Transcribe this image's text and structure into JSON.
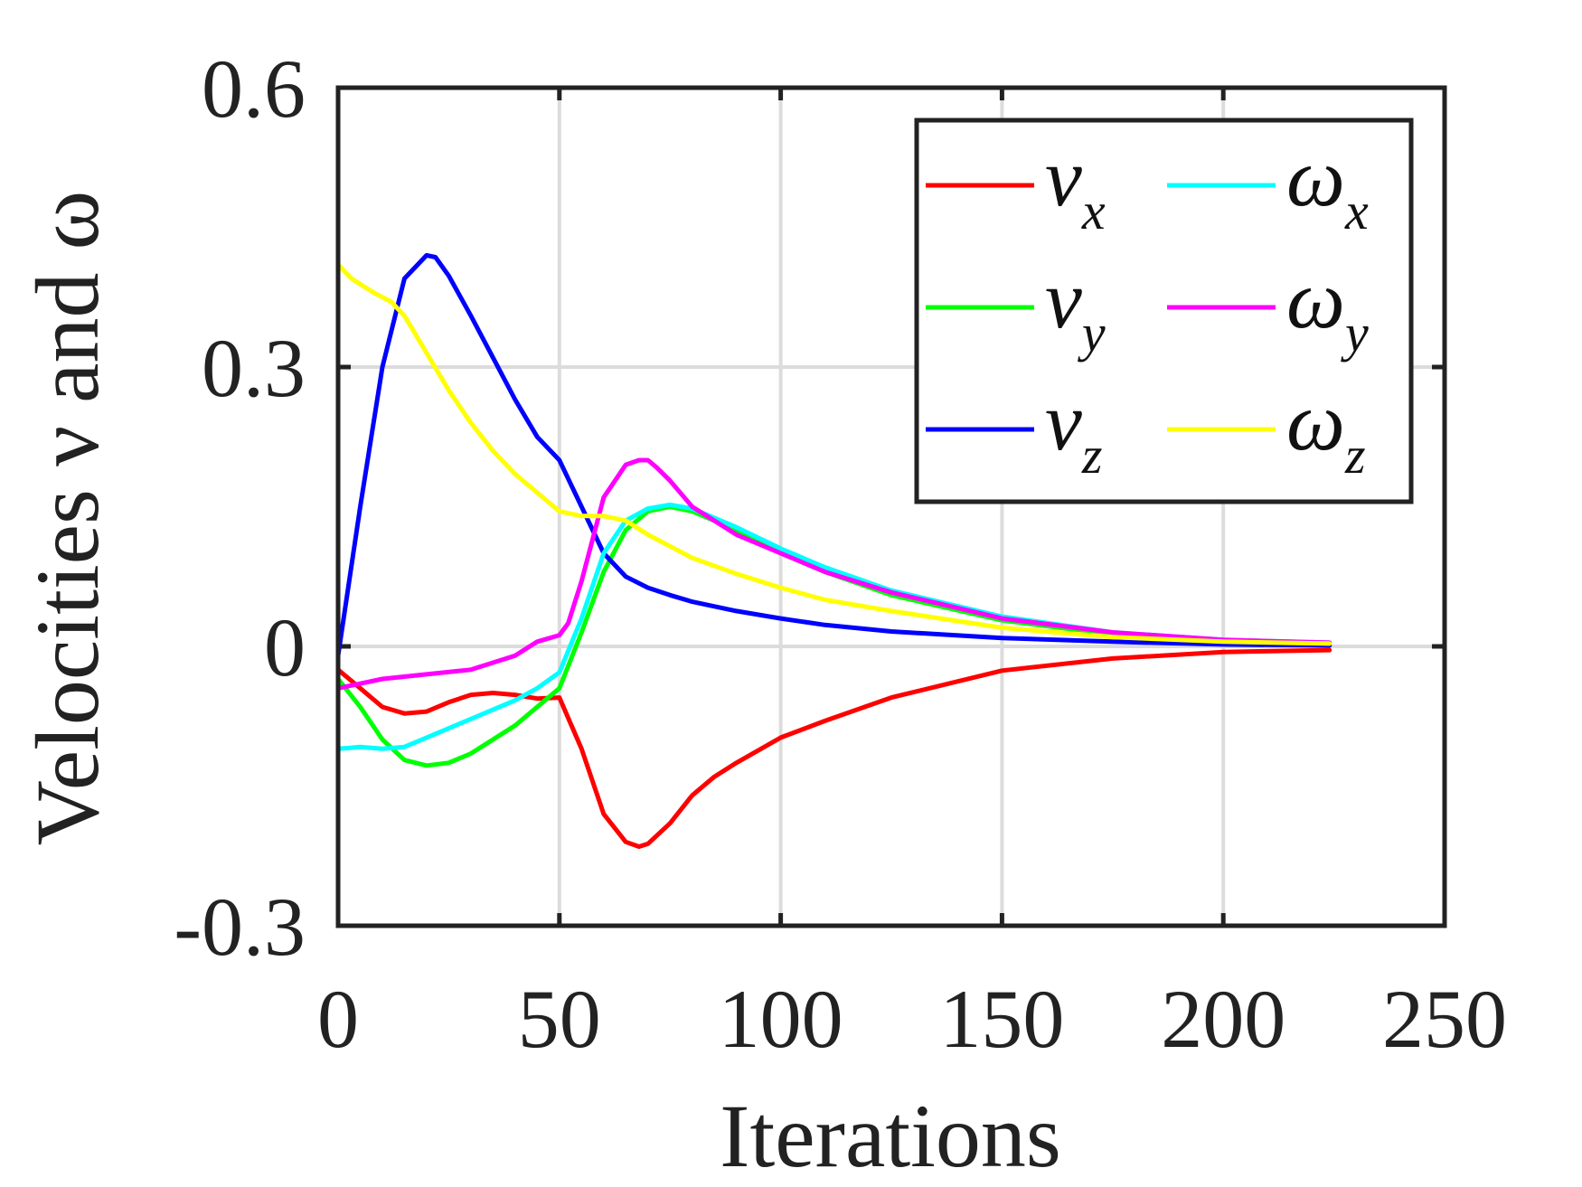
{
  "chart_data": {
    "type": "line",
    "xlabel": "Iterations",
    "ylabel": "Velocities ν and ω",
    "xlim": [
      0,
      250
    ],
    "ylim": [
      -0.3,
      0.6
    ],
    "xticks": [
      "0",
      "50",
      "100",
      "150",
      "200",
      "250"
    ],
    "yticks": [
      "-0.3",
      "0",
      "0.3",
      "0.6"
    ],
    "grid": true,
    "legend_position": "top-right",
    "series": [
      {
        "name": "νx",
        "symbol": "ν",
        "subscript": "x",
        "color": "#ff0000",
        "x": [
          0,
          5,
          10,
          15,
          20,
          25,
          30,
          35,
          40,
          45,
          50,
          55,
          60,
          65,
          68,
          70,
          75,
          80,
          85,
          90,
          100,
          110,
          125,
          150,
          175,
          200,
          224
        ],
        "y": [
          -0.025,
          -0.045,
          -0.065,
          -0.072,
          -0.07,
          -0.06,
          -0.052,
          -0.05,
          -0.052,
          -0.056,
          -0.055,
          -0.11,
          -0.18,
          -0.21,
          -0.215,
          -0.212,
          -0.19,
          -0.16,
          -0.14,
          -0.125,
          -0.098,
          -0.08,
          -0.055,
          -0.026,
          -0.013,
          -0.006,
          -0.004
        ]
      },
      {
        "name": "νy",
        "symbol": "ν",
        "subscript": "y",
        "color": "#00ff00",
        "x": [
          0,
          5,
          10,
          15,
          20,
          25,
          30,
          40,
          50,
          55,
          60,
          65,
          70,
          75,
          80,
          90,
          100,
          110,
          125,
          150,
          175,
          200,
          224
        ],
        "y": [
          -0.035,
          -0.065,
          -0.1,
          -0.122,
          -0.128,
          -0.125,
          -0.115,
          -0.085,
          -0.045,
          0.015,
          0.08,
          0.125,
          0.145,
          0.15,
          0.145,
          0.125,
          0.1,
          0.08,
          0.055,
          0.028,
          0.013,
          0.006,
          0.003
        ]
      },
      {
        "name": "νz",
        "symbol": "ν",
        "subscript": "z",
        "color": "#0000ff",
        "x": [
          0,
          5,
          10,
          15,
          20,
          22,
          25,
          30,
          35,
          40,
          45,
          50,
          55,
          60,
          65,
          70,
          75,
          80,
          90,
          100,
          110,
          125,
          150,
          175,
          200,
          224
        ],
        "y": [
          -0.01,
          0.15,
          0.3,
          0.395,
          0.42,
          0.418,
          0.398,
          0.355,
          0.31,
          0.265,
          0.225,
          0.2,
          0.15,
          0.1,
          0.075,
          0.063,
          0.055,
          0.048,
          0.038,
          0.03,
          0.023,
          0.016,
          0.009,
          0.005,
          0.002,
          0.001
        ]
      },
      {
        "name": "ωx",
        "symbol": "ω",
        "subscript": "x",
        "color": "#00ffff",
        "x": [
          0,
          5,
          10,
          15,
          20,
          30,
          40,
          45,
          50,
          55,
          60,
          65,
          70,
          75,
          80,
          90,
          100,
          110,
          125,
          150,
          175,
          200,
          224
        ],
        "y": [
          -0.11,
          -0.108,
          -0.11,
          -0.108,
          -0.098,
          -0.078,
          -0.058,
          -0.045,
          -0.028,
          0.03,
          0.1,
          0.135,
          0.148,
          0.152,
          0.148,
          0.128,
          0.105,
          0.085,
          0.06,
          0.032,
          0.015,
          0.007,
          0.004
        ]
      },
      {
        "name": "ωy",
        "symbol": "ω",
        "subscript": "y",
        "color": "#ff00ff",
        "x": [
          0,
          5,
          10,
          20,
          30,
          40,
          45,
          50,
          52,
          55,
          60,
          65,
          68,
          70,
          72,
          75,
          80,
          90,
          100,
          110,
          125,
          150,
          175,
          200,
          224
        ],
        "y": [
          -0.045,
          -0.04,
          -0.035,
          -0.03,
          -0.025,
          -0.01,
          0.005,
          0.012,
          0.025,
          0.07,
          0.16,
          0.195,
          0.2,
          0.2,
          0.192,
          0.178,
          0.15,
          0.12,
          0.1,
          0.08,
          0.058,
          0.03,
          0.015,
          0.007,
          0.004
        ]
      },
      {
        "name": "ωz",
        "symbol": "ω",
        "subscript": "z",
        "color": "#ffff00",
        "x": [
          0,
          3,
          8,
          12,
          15,
          20,
          25,
          30,
          35,
          40,
          45,
          50,
          55,
          60,
          65,
          70,
          80,
          90,
          100,
          110,
          125,
          150,
          175,
          200,
          224
        ],
        "y": [
          0.41,
          0.395,
          0.38,
          0.37,
          0.355,
          0.315,
          0.275,
          0.24,
          0.21,
          0.185,
          0.165,
          0.145,
          0.14,
          0.14,
          0.135,
          0.12,
          0.095,
          0.078,
          0.063,
          0.05,
          0.038,
          0.02,
          0.01,
          0.005,
          0.003
        ]
      }
    ]
  }
}
